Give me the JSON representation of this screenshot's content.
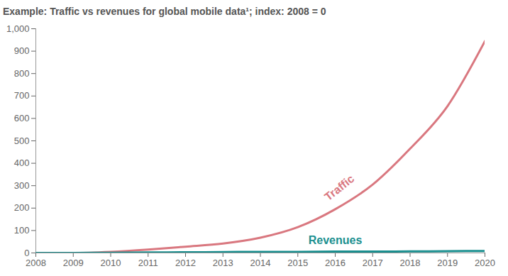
{
  "chart_data": {
    "type": "line",
    "title": "Example: Traffic vs revenues for global mobile data¹; index: 2008 = 0",
    "x": [
      2008,
      2009,
      2010,
      2011,
      2012,
      2013,
      2014,
      2015,
      2016,
      2017,
      2018,
      2019,
      2020
    ],
    "series": [
      {
        "name": "Traffic",
        "color": "#d9777f",
        "values": [
          0,
          0,
          5,
          15,
          28,
          42,
          68,
          115,
          195,
          305,
          465,
          655,
          945
        ]
      },
      {
        "name": "Revenues",
        "color": "#1a8f8f",
        "values": [
          0,
          0,
          1,
          2,
          3,
          4,
          5,
          5,
          6,
          6,
          7,
          8,
          9
        ]
      }
    ],
    "xlim": [
      2008,
      2020
    ],
    "xticks": [
      2008,
      2009,
      2010,
      2011,
      2012,
      2013,
      2014,
      2015,
      2016,
      2017,
      2018,
      2019,
      2020
    ],
    "ylim": [
      0,
      1000
    ],
    "yticks": [
      0,
      100,
      200,
      300,
      400,
      500,
      600,
      700,
      800,
      900,
      {
        "value": 1000,
        "label": "1,000"
      }
    ],
    "grid": false
  }
}
